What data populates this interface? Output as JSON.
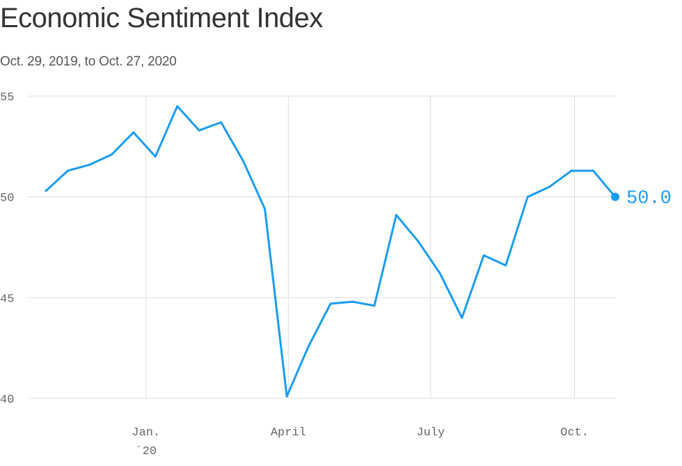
{
  "header": {
    "title": "Economic Sentiment Index",
    "subtitle": "Oct. 29, 2019, to Oct. 27, 2020"
  },
  "chart_data": {
    "type": "line",
    "title": "Economic Sentiment Index",
    "subtitle": "Oct. 29, 2019, to Oct. 27, 2020",
    "xlabel": "",
    "ylabel": "",
    "ylim": [
      40,
      55
    ],
    "yticks": [
      40,
      45,
      50,
      55
    ],
    "xlim": [
      "2019-10-29",
      "2020-10-27"
    ],
    "grid": true,
    "line_color": "#1a9cf0",
    "x_ticks": [
      {
        "date": "2020-01-01",
        "label": "Jan.",
        "sublabel": "`20"
      },
      {
        "date": "2020-04-01",
        "label": "April",
        "sublabel": ""
      },
      {
        "date": "2020-07-01",
        "label": "July",
        "sublabel": ""
      },
      {
        "date": "2020-10-01",
        "label": "Oct.",
        "sublabel": ""
      }
    ],
    "end_label": "50.0",
    "series": [
      {
        "x": [
          "2019-10-29",
          "2019-11-12",
          "2019-11-26",
          "2019-12-10",
          "2019-12-24",
          "2020-01-07",
          "2020-01-21",
          "2020-02-04",
          "2020-02-18",
          "2020-03-03",
          "2020-03-17",
          "2020-03-31",
          "2020-04-14",
          "2020-04-28",
          "2020-05-12",
          "2020-05-26",
          "2020-06-09",
          "2020-06-23",
          "2020-07-07",
          "2020-07-21",
          "2020-08-04",
          "2020-08-18",
          "2020-09-01",
          "2020-09-15",
          "2020-09-29",
          "2020-10-13",
          "2020-10-27"
        ],
        "values": [
          50.3,
          51.3,
          51.6,
          52.1,
          53.2,
          52.0,
          54.5,
          53.3,
          53.7,
          51.8,
          49.4,
          40.1,
          42.6,
          44.7,
          44.8,
          44.6,
          49.1,
          47.8,
          46.2,
          44.0,
          47.1,
          46.6,
          50.0,
          50.5,
          51.3,
          51.3,
          50.0
        ]
      }
    ]
  }
}
